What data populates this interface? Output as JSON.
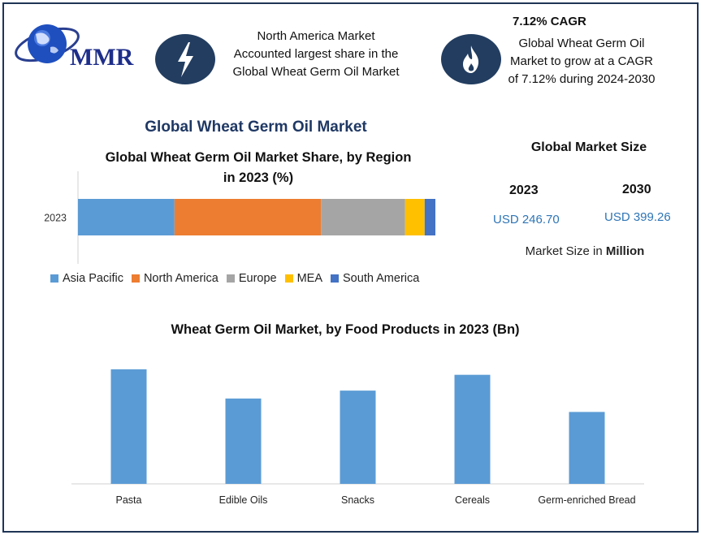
{
  "logo": {
    "text": "MMR",
    "icon": "globe-logo-icon"
  },
  "highlight_left": {
    "icon": "lightning-bolt-icon",
    "text_lines": [
      "North America Market",
      "Accounted largest share in the",
      "Global Wheat Germ Oil Market"
    ]
  },
  "highlight_right": {
    "icon": "flame-icon",
    "title": "7.12% CAGR",
    "text_lines": [
      "Global Wheat Germ Oil",
      "Market to grow at a CAGR",
      "of 7.12% during 2024-2030"
    ]
  },
  "main_title": "Global Wheat Germ Oil Market",
  "market_size": {
    "title": "Global Market Size",
    "years": [
      "2023",
      "2030"
    ],
    "values": [
      "USD 246.70",
      "USD 399.26"
    ],
    "note_prefix": "Market Size in ",
    "note_bold": "Million"
  },
  "colors": {
    "Asia Pacific": "#5b9bd5",
    "North America": "#ed7d31",
    "Europe": "#a5a5a5",
    "MEA": "#ffc000",
    "South America": "#4472c4",
    "bar": "#5b9bd5",
    "accent": "#223d60",
    "usd": "#2e75b6"
  },
  "chart_data": [
    {
      "type": "bar",
      "orientation": "horizontal-stacked",
      "title_lines": [
        "Global Wheat Germ Oil Market Share, by Region",
        "in 2023 (%)"
      ],
      "categories": [
        "2023"
      ],
      "series": [
        {
          "name": "Asia Pacific",
          "values": [
            27
          ]
        },
        {
          "name": "North America",
          "values": [
            41
          ]
        },
        {
          "name": "Europe",
          "values": [
            23.5
          ]
        },
        {
          "name": "MEA",
          "values": [
            5.5
          ]
        },
        {
          "name": "South America",
          "values": [
            3
          ]
        }
      ],
      "xlim": [
        0,
        100
      ],
      "grid": false,
      "legend": "bottom"
    },
    {
      "type": "bar",
      "title": "Wheat Germ Oil Market, by Food Products  in 2023 (Bn)",
      "categories": [
        "Pasta",
        "Edible Oils",
        "Snacks",
        "Cereals",
        "Germ-enriched Bread"
      ],
      "values": [
        145,
        108,
        118,
        138,
        91
      ],
      "ylim": [
        0,
        150
      ],
      "grid": false
    }
  ]
}
